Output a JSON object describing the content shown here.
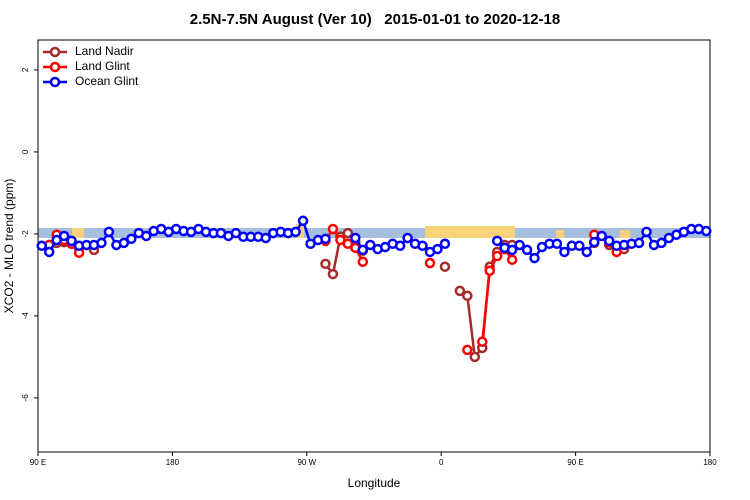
{
  "chart_data": {
    "type": "line",
    "title": "2.5N-7.5N August (Ver 10)   2015-01-01 to 2020-12-18",
    "x_label": "Longitude",
    "y_label": "XCO2 - MLO trend (ppm)",
    "xlim": [
      90,
      540
    ],
    "ylim": [
      -7.32,
      2.73
    ],
    "xticks": [
      {
        "value": 90,
        "label": "90 E"
      },
      180,
      {
        "value": 270,
        "label": "90 W"
      },
      {
        "value": 360,
        "label": "0"
      },
      {
        "value": 450,
        "label": "90 E"
      },
      {
        "value": 540,
        "label": "180"
      }
    ],
    "yticks": [
      2,
      0,
      -2,
      -4,
      -6
    ],
    "legend": "top-left",
    "x": [
      92.5,
      97.5,
      102.5,
      107.5,
      112.5,
      117.5,
      122.5,
      127.5,
      132.5,
      137.5,
      142.5,
      147.5,
      152.5,
      157.5,
      162.5,
      167.5,
      172.5,
      177.5,
      182.5,
      187.5,
      192.5,
      197.5,
      202.5,
      207.5,
      212.5,
      217.5,
      222.5,
      227.5,
      232.5,
      237.5,
      242.5,
      247.5,
      252.5,
      257.5,
      262.5,
      267.5,
      272.5,
      277.5,
      282.5,
      287.5,
      292.5,
      297.5,
      302.5,
      307.5,
      312.5,
      317.5,
      322.5,
      327.5,
      332.5,
      337.5,
      342.5,
      347.5,
      352.5,
      357.5,
      362.5,
      367.5,
      372.5,
      377.5,
      382.5,
      387.5,
      392.5,
      397.5,
      402.5,
      407.5,
      412.5,
      417.5,
      422.5,
      427.5,
      432.5,
      437.5,
      442.5,
      447.5,
      452.5,
      457.5,
      462.5,
      467.5,
      472.5,
      477.5,
      482.5,
      487.5,
      492.5,
      497.5,
      502.5,
      507.5,
      512.5,
      517.5,
      522.5,
      527.5,
      532.5,
      537.5
    ],
    "series": [
      {
        "name": "Land Nadir",
        "color": "#a52a2a",
        "values": [
          null,
          -2.27,
          -2.22,
          -2.2,
          -2.24,
          -2.34,
          null,
          -2.39,
          null,
          null,
          null,
          null,
          null,
          null,
          null,
          null,
          null,
          null,
          null,
          null,
          null,
          null,
          null,
          null,
          null,
          null,
          null,
          null,
          null,
          null,
          null,
          null,
          null,
          null,
          null,
          null,
          null,
          null,
          -2.73,
          -2.98,
          -2.07,
          -1.98,
          -2.2,
          -2.41,
          null,
          null,
          null,
          null,
          null,
          null,
          null,
          null,
          null,
          null,
          -2.8,
          null,
          -3.39,
          -3.51,
          -5.0,
          -4.78,
          -2.8,
          -2.44,
          -2.27,
          -2.27,
          null,
          null,
          null,
          null,
          null,
          null,
          null,
          null,
          null,
          null,
          -2.22,
          null,
          -2.27,
          null,
          -2.37,
          null,
          null,
          null,
          null,
          null,
          null,
          null,
          null,
          null,
          null,
          null
        ]
      },
      {
        "name": "Land Glint",
        "color": "#ff0000",
        "values": [
          null,
          -2.27,
          -2.02,
          -2.15,
          -2.24,
          -2.46,
          null,
          null,
          null,
          null,
          null,
          null,
          null,
          null,
          null,
          null,
          null,
          null,
          null,
          null,
          null,
          null,
          null,
          null,
          null,
          null,
          null,
          null,
          null,
          null,
          null,
          null,
          null,
          null,
          null,
          null,
          null,
          null,
          -2.17,
          -1.88,
          -2.15,
          -2.24,
          -2.34,
          -2.68,
          null,
          null,
          null,
          null,
          null,
          null,
          null,
          null,
          -2.71,
          null,
          null,
          null,
          null,
          -4.83,
          null,
          -4.63,
          -2.9,
          -2.54,
          -2.37,
          -2.63,
          null,
          null,
          null,
          null,
          null,
          null,
          null,
          null,
          null,
          null,
          -2.02,
          null,
          -2.2,
          -2.44,
          null,
          null,
          null,
          null,
          null,
          null,
          null,
          null,
          null,
          null,
          null,
          null
        ]
      },
      {
        "name": "Ocean Glint",
        "color": "#0000ff",
        "values": [
          -2.29,
          -2.44,
          -2.15,
          -2.05,
          -2.17,
          -2.29,
          -2.27,
          -2.27,
          -2.22,
          -1.95,
          -2.27,
          -2.22,
          -2.12,
          -1.98,
          -2.05,
          -1.93,
          -1.88,
          -1.95,
          -1.88,
          -1.93,
          -1.95,
          -1.88,
          -1.95,
          -1.98,
          -1.98,
          -2.05,
          -1.98,
          -2.07,
          -2.07,
          -2.07,
          -2.1,
          -1.98,
          -1.95,
          -1.98,
          -1.95,
          -1.68,
          -2.24,
          -2.15,
          -2.12,
          null,
          null,
          null,
          -2.1,
          -2.39,
          -2.27,
          -2.37,
          -2.32,
          -2.24,
          -2.29,
          -2.1,
          -2.24,
          -2.29,
          -2.44,
          -2.37,
          -2.24,
          null,
          null,
          null,
          null,
          null,
          null,
          -2.17,
          -2.34,
          -2.39,
          -2.27,
          -2.39,
          -2.59,
          -2.32,
          -2.24,
          -2.24,
          -2.44,
          -2.29,
          -2.29,
          -2.44,
          -2.2,
          -2.05,
          -2.17,
          -2.29,
          -2.27,
          -2.24,
          -2.22,
          -1.95,
          -2.27,
          -2.22,
          -2.1,
          -2.02,
          -1.95,
          -1.88,
          -1.88,
          -1.93
        ]
      }
    ]
  }
}
